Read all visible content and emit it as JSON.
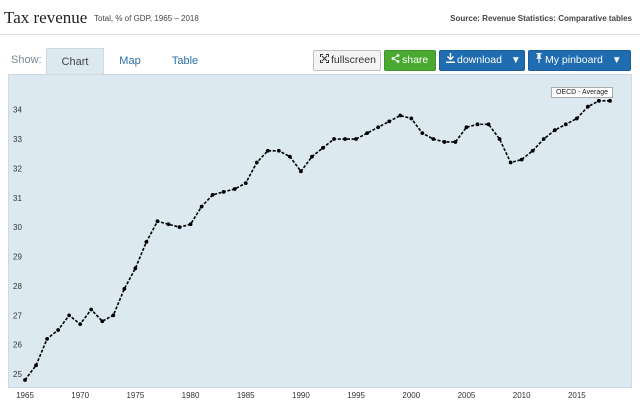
{
  "header": {
    "title": "Tax revenue",
    "subtitle": "Total, % of GDP, 1965 – 2018",
    "source": "Source: Revenue Statistics: Comparative tables"
  },
  "toolbar": {
    "show_label": "Show:",
    "tabs": [
      {
        "label": "Chart",
        "active": true
      },
      {
        "label": "Map",
        "active": false
      },
      {
        "label": "Table",
        "active": false
      }
    ],
    "fullscreen_label": "fullscreen",
    "share_label": "share",
    "download_label": "download",
    "pinboard_label": "My pinboard"
  },
  "colors": {
    "share": "#49a931",
    "download": "#1f6cb0",
    "panel": "#dde9f1",
    "line": "#000000"
  },
  "chart_data": {
    "type": "line",
    "x": [
      1965,
      1966,
      1967,
      1968,
      1969,
      1970,
      1971,
      1972,
      1973,
      1974,
      1975,
      1976,
      1977,
      1978,
      1979,
      1980,
      1981,
      1982,
      1983,
      1984,
      1985,
      1986,
      1987,
      1988,
      1989,
      1990,
      1991,
      1992,
      1993,
      1994,
      1995,
      1996,
      1997,
      1998,
      1999,
      2000,
      2001,
      2002,
      2003,
      2004,
      2005,
      2006,
      2007,
      2008,
      2009,
      2010,
      2011,
      2012,
      2013,
      2014,
      2015,
      2016,
      2017,
      2018
    ],
    "series": [
      {
        "name": "OECD - Average",
        "values": [
          24.8,
          25.3,
          26.2,
          26.5,
          27.0,
          26.7,
          27.2,
          26.8,
          27.0,
          27.9,
          28.6,
          29.5,
          30.2,
          30.1,
          30.0,
          30.1,
          30.7,
          31.1,
          31.2,
          31.3,
          31.5,
          32.2,
          32.6,
          32.6,
          32.4,
          31.9,
          32.4,
          32.7,
          33.0,
          33.0,
          33.0,
          33.2,
          33.4,
          33.6,
          33.8,
          33.7,
          33.2,
          33.0,
          32.9,
          32.9,
          33.4,
          33.5,
          33.5,
          33.0,
          32.2,
          32.3,
          32.6,
          33.0,
          33.3,
          33.5,
          33.7,
          34.1,
          34.3,
          34.3
        ]
      }
    ],
    "xticks": [
      1965,
      1970,
      1975,
      1980,
      1985,
      1990,
      1995,
      2000,
      2005,
      2010,
      2015
    ],
    "yticks": [
      25,
      26,
      27,
      28,
      29,
      30,
      31,
      32,
      33,
      34
    ],
    "xlim": [
      1965,
      2019
    ],
    "ylim": [
      24.8,
      34.6
    ],
    "grid": false,
    "legend": "top-right"
  }
}
